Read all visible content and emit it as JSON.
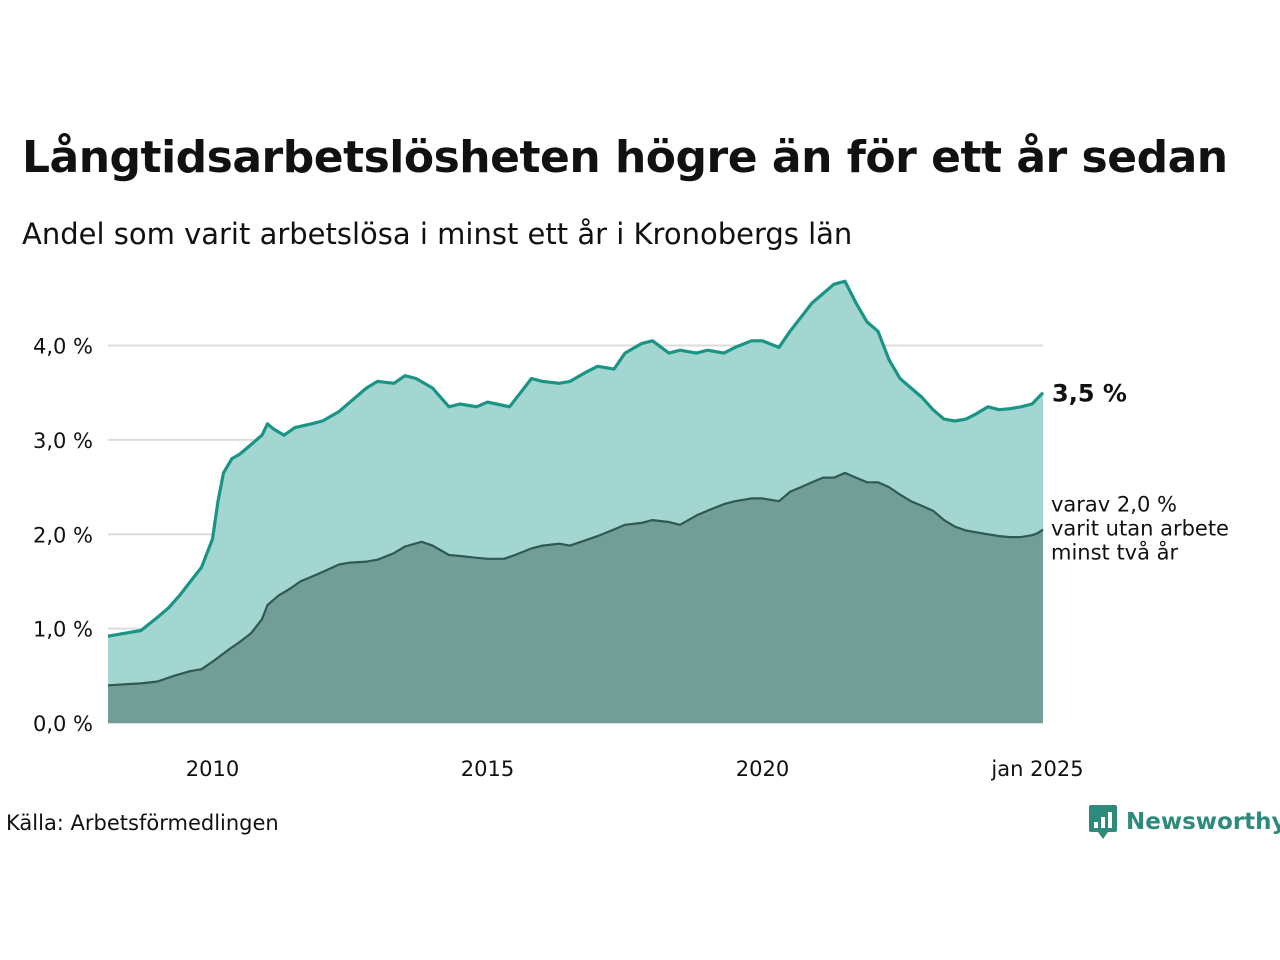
{
  "title": "Långtidsarbetslösheten högre än för ett år sedan",
  "subtitle": "Andel som varit arbetslösa i minst ett år i Kronobergs län",
  "source": "Källa: Arbetsförmedlingen",
  "brand": {
    "name": "Newsworthy",
    "icon": "newsworthy-logo-icon"
  },
  "colors": {
    "series1_line": "#1a9484",
    "series1_fill": "#a3d6d0",
    "series2_line": "#2f5a54",
    "series2_fill": "#729e97",
    "grid": "#dddddd",
    "brand": "#2e8a7c"
  },
  "chart_data": {
    "type": "area",
    "x_unit": "year",
    "xlim": [
      2008.1,
      2025.1
    ],
    "ylim": [
      0,
      4.8
    ],
    "y_ticks": [
      {
        "value": 0,
        "label": "0,0 %"
      },
      {
        "value": 1,
        "label": "1,0 %"
      },
      {
        "value": 2,
        "label": "2,0 %"
      },
      {
        "value": 3,
        "label": "3,0 %"
      },
      {
        "value": 4,
        "label": "4,0 %"
      }
    ],
    "x_ticks": [
      {
        "value": 2010,
        "label": "2010"
      },
      {
        "value": 2015,
        "label": "2015"
      },
      {
        "value": 2020,
        "label": "2020"
      },
      {
        "value": 2025,
        "label": "jan 2025"
      }
    ],
    "grid": true,
    "series": [
      {
        "end_label": "3,5 %",
        "x": [
          2008.1,
          2008.4,
          2008.7,
          2009.0,
          2009.2,
          2009.4,
          2009.6,
          2009.8,
          2010.0,
          2010.1,
          2010.2,
          2010.35,
          2010.5,
          2010.7,
          2010.9,
          2011.0,
          2011.1,
          2011.3,
          2011.5,
          2011.8,
          2012.0,
          2012.3,
          2012.5,
          2012.8,
          2013.0,
          2013.3,
          2013.5,
          2013.7,
          2014.0,
          2014.3,
          2014.5,
          2014.8,
          2015.0,
          2015.4,
          2015.6,
          2015.8,
          2016.0,
          2016.3,
          2016.5,
          2016.8,
          2017.0,
          2017.3,
          2017.5,
          2017.8,
          2018.0,
          2018.3,
          2018.5,
          2018.8,
          2019.0,
          2019.3,
          2019.5,
          2019.8,
          2020.0,
          2020.3,
          2020.5,
          2020.7,
          2020.9,
          2021.1,
          2021.3,
          2021.5,
          2021.7,
          2021.9,
          2022.1,
          2022.3,
          2022.5,
          2022.7,
          2022.9,
          2023.1,
          2023.3,
          2023.5,
          2023.7,
          2023.9,
          2024.1,
          2024.3,
          2024.5,
          2024.7,
          2024.9,
          2025.0,
          2025.1
        ],
        "y": [
          0.92,
          0.95,
          0.98,
          1.12,
          1.22,
          1.35,
          1.5,
          1.65,
          1.95,
          2.35,
          2.65,
          2.8,
          2.85,
          2.95,
          3.05,
          3.17,
          3.12,
          3.05,
          3.13,
          3.17,
          3.2,
          3.3,
          3.4,
          3.55,
          3.62,
          3.6,
          3.68,
          3.65,
          3.55,
          3.35,
          3.38,
          3.35,
          3.4,
          3.35,
          3.5,
          3.65,
          3.62,
          3.6,
          3.62,
          3.72,
          3.78,
          3.75,
          3.92,
          4.02,
          4.05,
          3.92,
          3.95,
          3.92,
          3.95,
          3.92,
          3.98,
          4.05,
          4.05,
          3.98,
          4.15,
          4.3,
          4.45,
          4.55,
          4.65,
          4.68,
          4.45,
          4.25,
          4.15,
          3.85,
          3.65,
          3.55,
          3.45,
          3.32,
          3.22,
          3.2,
          3.22,
          3.28,
          3.35,
          3.32,
          3.33,
          3.35,
          3.38,
          3.44,
          3.5
        ]
      },
      {
        "end_label": "varav 2,0 % varit utan arbete minst två år",
        "end_label_lines": [
          "varav 2,0 %",
          "varit utan arbete",
          "minst två år"
        ],
        "x": [
          2008.1,
          2008.4,
          2008.7,
          2009.0,
          2009.3,
          2009.6,
          2009.8,
          2010.0,
          2010.3,
          2010.5,
          2010.7,
          2010.9,
          2011.0,
          2011.2,
          2011.4,
          2011.6,
          2011.8,
          2012.0,
          2012.3,
          2012.5,
          2012.8,
          2013.0,
          2013.3,
          2013.5,
          2013.8,
          2014.0,
          2014.3,
          2014.5,
          2014.8,
          2015.0,
          2015.3,
          2015.5,
          2015.8,
          2016.0,
          2016.3,
          2016.5,
          2016.8,
          2017.0,
          2017.3,
          2017.5,
          2017.8,
          2018.0,
          2018.3,
          2018.5,
          2018.8,
          2019.0,
          2019.3,
          2019.5,
          2019.8,
          2020.0,
          2020.3,
          2020.5,
          2020.7,
          2020.9,
          2021.1,
          2021.3,
          2021.5,
          2021.7,
          2021.9,
          2022.1,
          2022.3,
          2022.5,
          2022.7,
          2022.9,
          2023.1,
          2023.3,
          2023.5,
          2023.7,
          2023.9,
          2024.1,
          2024.3,
          2024.5,
          2024.7,
          2024.9,
          2025.0,
          2025.1
        ],
        "y": [
          0.4,
          0.41,
          0.42,
          0.44,
          0.5,
          0.55,
          0.57,
          0.65,
          0.78,
          0.86,
          0.95,
          1.1,
          1.25,
          1.35,
          1.42,
          1.5,
          1.55,
          1.6,
          1.68,
          1.7,
          1.71,
          1.73,
          1.8,
          1.87,
          1.92,
          1.88,
          1.78,
          1.77,
          1.75,
          1.74,
          1.74,
          1.78,
          1.85,
          1.88,
          1.9,
          1.88,
          1.94,
          1.98,
          2.05,
          2.1,
          2.12,
          2.15,
          2.13,
          2.1,
          2.2,
          2.25,
          2.32,
          2.35,
          2.38,
          2.38,
          2.35,
          2.45,
          2.5,
          2.55,
          2.6,
          2.6,
          2.65,
          2.6,
          2.55,
          2.55,
          2.5,
          2.42,
          2.35,
          2.3,
          2.25,
          2.15,
          2.08,
          2.04,
          2.02,
          2.0,
          1.98,
          1.97,
          1.97,
          1.99,
          2.01,
          2.05
        ]
      }
    ]
  }
}
